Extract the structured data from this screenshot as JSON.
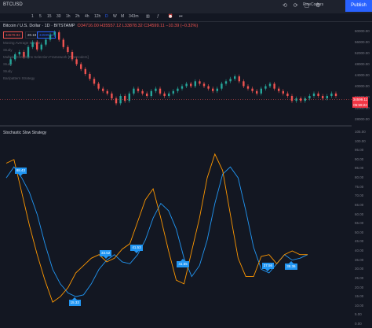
{
  "topbar": {
    "symbol": "BTCUSD",
    "account": "PineCoders",
    "publish_label": "Publish"
  },
  "intervals": [
    "1",
    "5",
    "15",
    "30",
    "1h",
    "2h",
    "4h",
    "12h",
    "D",
    "W",
    "M",
    "343m"
  ],
  "main_title": {
    "symbol_full": "Bitcoin / U.S. Dollar · 1D · BITSTAMP",
    "ohlc": "O34716.00 H35557.12 L33878.32 C34599.11 −10.39 (−0.32%)"
  },
  "price_boxes": {
    "sell": "34578.92",
    "spread": "20.19",
    "buy": "34599.11"
  },
  "indicators": [
    "Moving Average Simple",
    "Study",
    "Multiple Conditions Selection Framework [PineCoders]",
    "Study",
    "Study",
    "Bar/pattern Strategy"
  ],
  "pane2_title": "Stochastic Slow Strategy",
  "main_axis": [
    "60000.00",
    "56000.00",
    "52000.00",
    "48000.00",
    "44000.00",
    "40000.00",
    "36000.00",
    "32000.00",
    "28000.00"
  ],
  "current_price": {
    "value": "34599.11",
    "countdown": "05:59:22"
  },
  "osc_axis": [
    "105.00",
    "100.00",
    "95.00",
    "90.00",
    "85.00",
    "80.00",
    "75.00",
    "70.00",
    "65.00",
    "60.00",
    "55.00",
    "50.00",
    "45.00",
    "40.00",
    "35.00",
    "30.00",
    "25.00",
    "20.00",
    "15.00",
    "10.00",
    "5.00",
    "0.00"
  ],
  "trade_tags": [
    {
      "label": "88.43",
      "dir": "down"
    },
    {
      "label": "15.33",
      "dir": "up"
    },
    {
      "label": "33.52",
      "dir": "down"
    },
    {
      "label": "41.53",
      "dir": "down"
    },
    {
      "label": "41.55",
      "dir": "up"
    },
    {
      "label": "37.56",
      "dir": "down"
    },
    {
      "label": "38.36",
      "dir": "up"
    }
  ],
  "colors": {
    "up": "#26a69a",
    "down": "#ef5350",
    "k": "#2196f3",
    "d": "#ff9800",
    "accent": "#2962ff"
  },
  "chart_data": {
    "type": "line",
    "series": [
      {
        "values": [
          80,
          86,
          80,
          72,
          60,
          44,
          30,
          22,
          17,
          15,
          16,
          22,
          30,
          35,
          38,
          34,
          33,
          38,
          46,
          58,
          66,
          62,
          52,
          36,
          26,
          32,
          46,
          66,
          82,
          86,
          80,
          62,
          42,
          30,
          28,
          33,
          38,
          35,
          36,
          38
        ]
      },
      {
        "values": [
          88,
          90,
          72,
          54,
          38,
          24,
          12,
          15,
          20,
          28,
          32,
          36,
          38,
          34,
          36,
          41,
          44,
          56,
          68,
          74,
          58,
          40,
          24,
          22,
          40,
          58,
          80,
          93,
          84,
          60,
          36,
          26,
          26,
          37,
          38,
          33,
          38,
          40,
          38,
          38
        ]
      }
    ],
    "ylim": [
      0,
      105
    ]
  }
}
